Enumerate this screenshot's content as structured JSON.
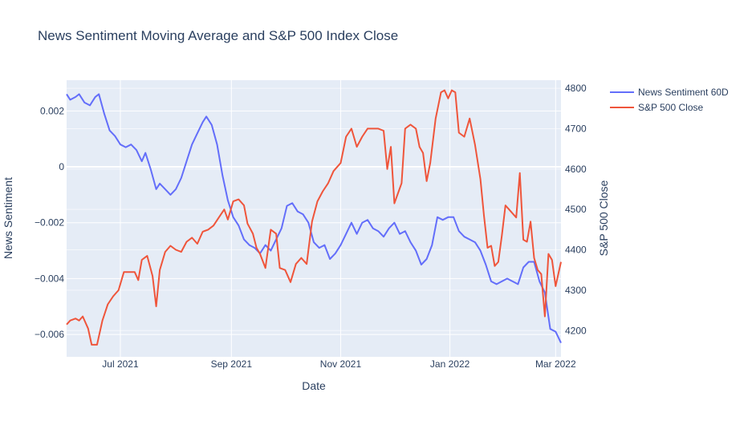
{
  "chart_data": {
    "type": "line",
    "title": "News Sentiment Moving Average and S&P 500 Index Close",
    "xlabel": "Date",
    "ylabel": "News Sentiment",
    "y2label": "S&P 500 Close",
    "xlim": [
      "2021-06-01",
      "2022-03-04"
    ],
    "ylim": [
      -0.0068,
      0.0031
    ],
    "y2lim": [
      4135,
      4820
    ],
    "x_ticks": [
      {
        "date": "2021-07-01",
        "label": "Jul 2021"
      },
      {
        "date": "2021-09-01",
        "label": "Sep 2021"
      },
      {
        "date": "2021-11-01",
        "label": "Nov 2021"
      },
      {
        "date": "2022-01-01",
        "label": "Jan 2022"
      },
      {
        "date": "2022-03-01",
        "label": "Mar 2022"
      }
    ],
    "y_ticks": [
      {
        "value": 0.002,
        "label": "0.002"
      },
      {
        "value": 0,
        "label": "0"
      },
      {
        "value": -0.002,
        "label": "−0.002"
      },
      {
        "value": -0.004,
        "label": "−0.004"
      },
      {
        "value": -0.006,
        "label": "−0.006"
      }
    ],
    "y2_ticks": [
      {
        "value": 4800,
        "label": "4800"
      },
      {
        "value": 4700,
        "label": "4700"
      },
      {
        "value": 4600,
        "label": "4600"
      },
      {
        "value": 4500,
        "label": "4500"
      },
      {
        "value": 4400,
        "label": "4400"
      },
      {
        "value": 4300,
        "label": "4300"
      },
      {
        "value": 4200,
        "label": "4200"
      }
    ],
    "grid": true,
    "legend_position": "top-right",
    "series": [
      {
        "name": "News Sentiment 60D",
        "axis": "y",
        "color": "#636efa",
        "points": [
          [
            "2021-06-01",
            0.0026
          ],
          [
            "2021-06-03",
            0.0024
          ],
          [
            "2021-06-06",
            0.0025
          ],
          [
            "2021-06-08",
            0.0026
          ],
          [
            "2021-06-11",
            0.0023
          ],
          [
            "2021-06-14",
            0.0022
          ],
          [
            "2021-06-17",
            0.0025
          ],
          [
            "2021-06-19",
            0.0026
          ],
          [
            "2021-06-22",
            0.0019
          ],
          [
            "2021-06-25",
            0.0013
          ],
          [
            "2021-06-28",
            0.0011
          ],
          [
            "2021-07-01",
            0.0008
          ],
          [
            "2021-07-04",
            0.0007
          ],
          [
            "2021-07-07",
            0.0008
          ],
          [
            "2021-07-10",
            0.0006
          ],
          [
            "2021-07-13",
            0.0002
          ],
          [
            "2021-07-15",
            0.0005
          ],
          [
            "2021-07-18",
            -0.0001
          ],
          [
            "2021-07-21",
            -0.0008
          ],
          [
            "2021-07-23",
            -0.0006
          ],
          [
            "2021-07-26",
            -0.0008
          ],
          [
            "2021-07-29",
            -0.001
          ],
          [
            "2021-08-01",
            -0.0008
          ],
          [
            "2021-08-04",
            -0.0004
          ],
          [
            "2021-08-07",
            0.0002
          ],
          [
            "2021-08-10",
            0.0008
          ],
          [
            "2021-08-13",
            0.0012
          ],
          [
            "2021-08-16",
            0.0016
          ],
          [
            "2021-08-18",
            0.0018
          ],
          [
            "2021-08-21",
            0.0015
          ],
          [
            "2021-08-24",
            0.0008
          ],
          [
            "2021-08-27",
            -0.0003
          ],
          [
            "2021-08-30",
            -0.0012
          ],
          [
            "2021-09-02",
            -0.0018
          ],
          [
            "2021-09-05",
            -0.0021
          ],
          [
            "2021-09-08",
            -0.0026
          ],
          [
            "2021-09-11",
            -0.0028
          ],
          [
            "2021-09-14",
            -0.0029
          ],
          [
            "2021-09-17",
            -0.0031
          ],
          [
            "2021-09-20",
            -0.0028
          ],
          [
            "2021-09-23",
            -0.003
          ],
          [
            "2021-09-26",
            -0.0026
          ],
          [
            "2021-09-29",
            -0.0022
          ],
          [
            "2021-10-02",
            -0.0014
          ],
          [
            "2021-10-05",
            -0.0013
          ],
          [
            "2021-10-08",
            -0.0016
          ],
          [
            "2021-10-11",
            -0.0017
          ],
          [
            "2021-10-14",
            -0.002
          ],
          [
            "2021-10-17",
            -0.0027
          ],
          [
            "2021-10-20",
            -0.0029
          ],
          [
            "2021-10-23",
            -0.0028
          ],
          [
            "2021-10-26",
            -0.0033
          ],
          [
            "2021-10-29",
            -0.0031
          ],
          [
            "2021-11-01",
            -0.0028
          ],
          [
            "2021-11-04",
            -0.0024
          ],
          [
            "2021-11-07",
            -0.002
          ],
          [
            "2021-11-10",
            -0.0024
          ],
          [
            "2021-11-13",
            -0.002
          ],
          [
            "2021-11-16",
            -0.0019
          ],
          [
            "2021-11-19",
            -0.0022
          ],
          [
            "2021-11-22",
            -0.0023
          ],
          [
            "2021-11-25",
            -0.0025
          ],
          [
            "2021-11-28",
            -0.0022
          ],
          [
            "2021-12-01",
            -0.002
          ],
          [
            "2021-12-04",
            -0.0024
          ],
          [
            "2021-12-07",
            -0.0023
          ],
          [
            "2021-12-10",
            -0.0027
          ],
          [
            "2021-12-13",
            -0.003
          ],
          [
            "2021-12-16",
            -0.0035
          ],
          [
            "2021-12-19",
            -0.0033
          ],
          [
            "2021-12-22",
            -0.0028
          ],
          [
            "2021-12-25",
            -0.0018
          ],
          [
            "2021-12-28",
            -0.0019
          ],
          [
            "2021-12-31",
            -0.0018
          ],
          [
            "2022-01-03",
            -0.0018
          ],
          [
            "2022-01-06",
            -0.0023
          ],
          [
            "2022-01-09",
            -0.0025
          ],
          [
            "2022-01-12",
            -0.0026
          ],
          [
            "2022-01-15",
            -0.0027
          ],
          [
            "2022-01-18",
            -0.003
          ],
          [
            "2022-01-21",
            -0.0035
          ],
          [
            "2022-01-24",
            -0.0041
          ],
          [
            "2022-01-27",
            -0.0042
          ],
          [
            "2022-01-30",
            -0.0041
          ],
          [
            "2022-02-02",
            -0.004
          ],
          [
            "2022-02-05",
            -0.0041
          ],
          [
            "2022-02-08",
            -0.0042
          ],
          [
            "2022-02-11",
            -0.0036
          ],
          [
            "2022-02-14",
            -0.0034
          ],
          [
            "2022-02-17",
            -0.0034
          ],
          [
            "2022-02-20",
            -0.0041
          ],
          [
            "2022-02-23",
            -0.0045
          ],
          [
            "2022-02-26",
            -0.0058
          ],
          [
            "2022-03-01",
            -0.0059
          ],
          [
            "2022-03-04",
            -0.0063
          ]
        ]
      },
      {
        "name": "S&P 500 Close",
        "axis": "y2",
        "color": "#ef553b",
        "points": [
          [
            "2021-06-01",
            4215
          ],
          [
            "2021-06-03",
            4225
          ],
          [
            "2021-06-06",
            4230
          ],
          [
            "2021-06-08",
            4225
          ],
          [
            "2021-06-10",
            4235
          ],
          [
            "2021-06-13",
            4205
          ],
          [
            "2021-06-15",
            4165
          ],
          [
            "2021-06-18",
            4165
          ],
          [
            "2021-06-21",
            4225
          ],
          [
            "2021-06-24",
            4265
          ],
          [
            "2021-06-27",
            4285
          ],
          [
            "2021-06-30",
            4300
          ],
          [
            "2021-07-03",
            4345
          ],
          [
            "2021-07-06",
            4345
          ],
          [
            "2021-07-09",
            4345
          ],
          [
            "2021-07-11",
            4325
          ],
          [
            "2021-07-13",
            4375
          ],
          [
            "2021-07-16",
            4385
          ],
          [
            "2021-07-19",
            4335
          ],
          [
            "2021-07-21",
            4260
          ],
          [
            "2021-07-23",
            4350
          ],
          [
            "2021-07-26",
            4395
          ],
          [
            "2021-07-29",
            4410
          ],
          [
            "2021-08-01",
            4400
          ],
          [
            "2021-08-04",
            4395
          ],
          [
            "2021-08-07",
            4420
          ],
          [
            "2021-08-10",
            4430
          ],
          [
            "2021-08-13",
            4415
          ],
          [
            "2021-08-16",
            4445
          ],
          [
            "2021-08-19",
            4450
          ],
          [
            "2021-08-22",
            4460
          ],
          [
            "2021-08-25",
            4480
          ],
          [
            "2021-08-28",
            4500
          ],
          [
            "2021-08-30",
            4475
          ],
          [
            "2021-09-02",
            4520
          ],
          [
            "2021-09-05",
            4525
          ],
          [
            "2021-09-08",
            4510
          ],
          [
            "2021-09-10",
            4465
          ],
          [
            "2021-09-13",
            4440
          ],
          [
            "2021-09-15",
            4405
          ],
          [
            "2021-09-17",
            4390
          ],
          [
            "2021-09-20",
            4355
          ],
          [
            "2021-09-23",
            4450
          ],
          [
            "2021-09-26",
            4440
          ],
          [
            "2021-09-28",
            4355
          ],
          [
            "2021-10-01",
            4350
          ],
          [
            "2021-10-04",
            4320
          ],
          [
            "2021-10-07",
            4365
          ],
          [
            "2021-10-10",
            4380
          ],
          [
            "2021-10-13",
            4365
          ],
          [
            "2021-10-16",
            4470
          ],
          [
            "2021-10-19",
            4520
          ],
          [
            "2021-10-22",
            4545
          ],
          [
            "2021-10-25",
            4565
          ],
          [
            "2021-10-28",
            4595
          ],
          [
            "2021-11-01",
            4615
          ],
          [
            "2021-11-04",
            4680
          ],
          [
            "2021-11-07",
            4700
          ],
          [
            "2021-11-10",
            4655
          ],
          [
            "2021-11-13",
            4680
          ],
          [
            "2021-11-16",
            4700
          ],
          [
            "2021-11-19",
            4700
          ],
          [
            "2021-11-22",
            4700
          ],
          [
            "2021-11-25",
            4695
          ],
          [
            "2021-11-27",
            4600
          ],
          [
            "2021-11-29",
            4655
          ],
          [
            "2021-12-01",
            4515
          ],
          [
            "2021-12-03",
            4540
          ],
          [
            "2021-12-05",
            4565
          ],
          [
            "2021-12-07",
            4700
          ],
          [
            "2021-12-10",
            4710
          ],
          [
            "2021-12-13",
            4700
          ],
          [
            "2021-12-15",
            4655
          ],
          [
            "2021-12-17",
            4640
          ],
          [
            "2021-12-19",
            4570
          ],
          [
            "2021-12-21",
            4615
          ],
          [
            "2021-12-24",
            4725
          ],
          [
            "2021-12-27",
            4790
          ],
          [
            "2021-12-29",
            4795
          ],
          [
            "2021-12-31",
            4775
          ],
          [
            "2022-01-02",
            4795
          ],
          [
            "2022-01-04",
            4790
          ],
          [
            "2022-01-06",
            4690
          ],
          [
            "2022-01-09",
            4680
          ],
          [
            "2022-01-12",
            4725
          ],
          [
            "2022-01-15",
            4660
          ],
          [
            "2022-01-18",
            4575
          ],
          [
            "2022-01-20",
            4485
          ],
          [
            "2022-01-22",
            4405
          ],
          [
            "2022-01-24",
            4410
          ],
          [
            "2022-01-26",
            4360
          ],
          [
            "2022-01-28",
            4370
          ],
          [
            "2022-01-30",
            4435
          ],
          [
            "2022-02-01",
            4510
          ],
          [
            "2022-02-03",
            4500
          ],
          [
            "2022-02-05",
            4490
          ],
          [
            "2022-02-07",
            4480
          ],
          [
            "2022-02-09",
            4590
          ],
          [
            "2022-02-11",
            4425
          ],
          [
            "2022-02-13",
            4420
          ],
          [
            "2022-02-15",
            4470
          ],
          [
            "2022-02-17",
            4380
          ],
          [
            "2022-02-19",
            4350
          ],
          [
            "2022-02-21",
            4340
          ],
          [
            "2022-02-23",
            4235
          ],
          [
            "2022-02-25",
            4390
          ],
          [
            "2022-02-27",
            4375
          ],
          [
            "2022-03-01",
            4310
          ],
          [
            "2022-03-04",
            4370
          ]
        ]
      }
    ]
  }
}
